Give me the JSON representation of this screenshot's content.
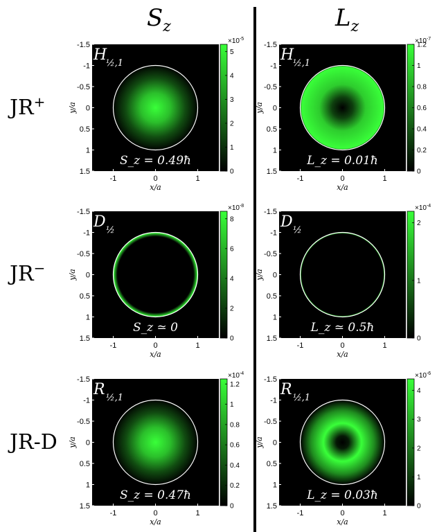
{
  "columns": [
    {
      "symbol": "S",
      "sub": "z"
    },
    {
      "symbol": "L",
      "sub": "z"
    }
  ],
  "rows": [
    {
      "label": "JR",
      "sup": "+"
    },
    {
      "label": "JR",
      "sup": "−"
    },
    {
      "label": "JR-D",
      "sup": ""
    }
  ],
  "axes": {
    "xlabel": "x/a",
    "ylabel": "y/a",
    "x_ticks": [
      "-1",
      "0",
      "1"
    ],
    "y_ticks": [
      "-1.5",
      "-1",
      "-0.5",
      "0",
      "0.5",
      "1",
      "1.5"
    ],
    "range": [
      -1.5,
      1.5
    ]
  },
  "colors": {
    "field": "#000000",
    "max": "#39ff39",
    "circle": "#ffffff"
  },
  "panels": [
    {
      "tag_main": "H",
      "tag_sub": "½,1",
      "pattern": "center",
      "annotation": "S_z = 0.49ħ",
      "cb_exp": "-5",
      "cb_max": 5.3,
      "cb_ticks": [
        "5",
        "4",
        "3",
        "2",
        "1",
        "0"
      ]
    },
    {
      "tag_main": "H",
      "tag_sub": "½,1",
      "pattern": "ring-wide",
      "annotation": "L_z = 0.01ħ",
      "cb_exp": "-7",
      "cb_max": 1.2,
      "cb_ticks": [
        "1.2",
        "1",
        "0.8",
        "0.6",
        "0.4",
        "0.2",
        "0"
      ]
    },
    {
      "tag_main": "D",
      "tag_sub": "½",
      "pattern": "edge",
      "annotation": "S_z ≃ 0",
      "cb_exp": "-8",
      "cb_max": 8.5,
      "cb_ticks": [
        "8",
        "6",
        "4",
        "2",
        "0"
      ]
    },
    {
      "tag_main": "D",
      "tag_sub": "½",
      "pattern": "edge-thin",
      "annotation": "L_z ≃ 0.5ħ",
      "cb_exp": "-4",
      "cb_max": 2.2,
      "cb_ticks": [
        "2",
        "1",
        "0"
      ]
    },
    {
      "tag_main": "R",
      "tag_sub": "½,1",
      "pattern": "center",
      "annotation": "S_z = 0.47ħ",
      "cb_exp": "-4",
      "cb_max": 1.25,
      "cb_ticks": [
        "1.2",
        "1",
        "0.8",
        "0.6",
        "0.4",
        "0.2",
        "0"
      ]
    },
    {
      "tag_main": "R",
      "tag_sub": "½,1",
      "pattern": "donut",
      "annotation": "L_z = 0.03ħ",
      "cb_exp": "-6",
      "cb_max": 4.4,
      "cb_ticks": [
        "4",
        "3",
        "2",
        "1",
        "0"
      ]
    }
  ]
}
